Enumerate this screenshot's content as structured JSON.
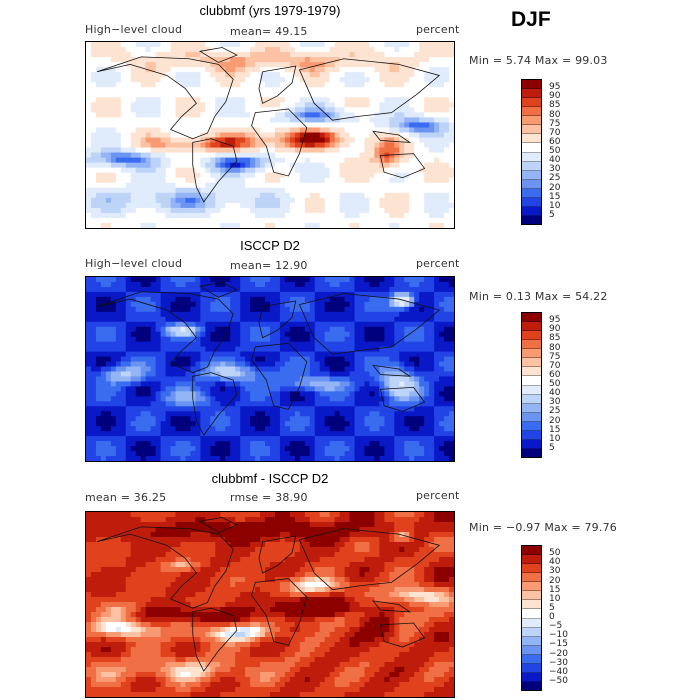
{
  "season": "DJF",
  "colors": {
    "seq": [
      "#00007d",
      "#0a19c8",
      "#2244e6",
      "#3a6cf0",
      "#6a93f2",
      "#93b5f5",
      "#bdd3f8",
      "#e0ebfb",
      "#ffffff",
      "#fde4d2",
      "#fbc3a4",
      "#f89a72",
      "#f06f45",
      "#e0421e",
      "#bf1d0c",
      "#8c0000"
    ],
    "diff": [
      "#00007d",
      "#0a19c8",
      "#2244e6",
      "#3a6cf0",
      "#6a93f2",
      "#93b5f5",
      "#bdd3f8",
      "#e0ebfb",
      "#ffffff",
      "#fde4d2",
      "#fbc3a4",
      "#f89a72",
      "#f06f45",
      "#e0421e",
      "#bf1d0c",
      "#8c0000"
    ]
  },
  "panels": [
    {
      "title": "clubbmf (yrs 1979-1979)",
      "left": "High−level cloud",
      "center": "mean=  49.15",
      "right": "percent",
      "minmax": "Min =    5.74  Max =   99.03",
      "cbar_labels": [
        "95",
        "90",
        "85",
        "80",
        "75",
        "70",
        "60",
        "50",
        "40",
        "30",
        "25",
        "20",
        "15",
        "10",
        "5"
      ],
      "scheme": "seq",
      "field": "model"
    },
    {
      "title": "ISCCP D2",
      "left": "High−level cloud",
      "center": "mean=  12.90",
      "right": "percent",
      "minmax": "Min =    0.13  Max =   54.22",
      "cbar_labels": [
        "95",
        "90",
        "85",
        "80",
        "75",
        "70",
        "60",
        "50",
        "40",
        "30",
        "25",
        "20",
        "15",
        "10",
        "5"
      ],
      "scheme": "seq",
      "field": "obs"
    },
    {
      "title": "clubbmf - ISCCP D2",
      "left": "mean =   36.25",
      "center": "rmse =   38.90",
      "right": "percent",
      "minmax": "Min =  −0.97  Max =   79.76",
      "cbar_labels": [
        "50",
        "40",
        "30",
        "20",
        "15",
        "10",
        "5",
        "0",
        "−5",
        "−10",
        "−15",
        "−20",
        "−30",
        "−40",
        "−50"
      ],
      "scheme": "diff",
      "field": "diff"
    }
  ]
}
